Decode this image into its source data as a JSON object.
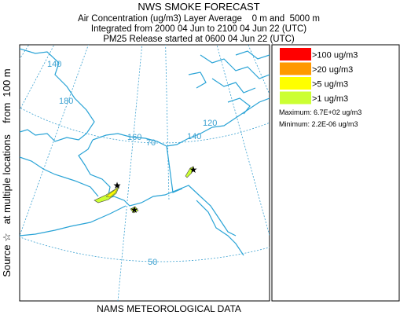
{
  "header": {
    "title": "NWS SMOKE FORECAST",
    "lines": [
      "Air Concentration (ug/m3) Layer Average    0 m and  5000 m",
      "Integrated from 2000 04 Jun to 2100 04 Jun 22 (UTC)",
      "PM25 Release started at 0600 04 Jun 22 (UTC)"
    ]
  },
  "legend": {
    "entries": [
      {
        "label": ">100 ug/m3",
        "color": "#ff0000"
      },
      {
        "label": ">20 ug/m3",
        "color": "#ff9900"
      },
      {
        "label": ">5 ug/m3",
        "color": "#ffff00"
      },
      {
        "label": ">1 ug/m3",
        "color": "#ccff33"
      }
    ],
    "maximum": "Maximum: 6.7E+02 ug/m3",
    "minimum": "Minimum: 2.2E-06 ug/m3"
  },
  "map": {
    "side_label": "Source ☆   at multiple locations    from  100 m",
    "grid_labels": [
      "140",
      "180",
      "160",
      "70",
      "140",
      "120",
      "50"
    ]
  },
  "footer": "NAMS METEOROLOGICAL DATA"
}
